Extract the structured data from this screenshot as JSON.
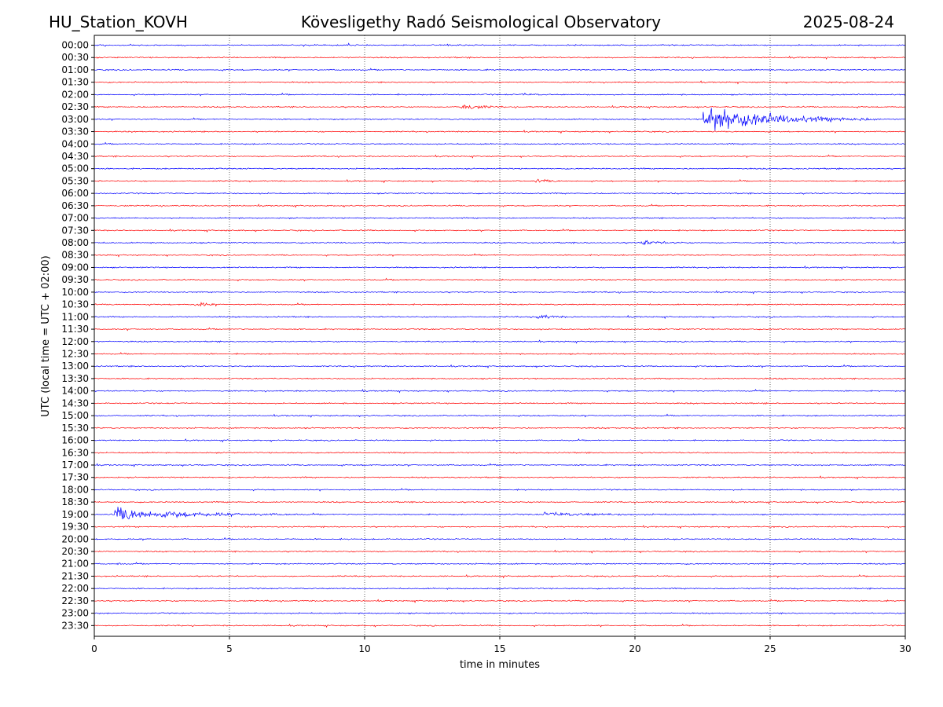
{
  "header": {
    "station": "HU_Station_KOVH",
    "observatory": "Kövesligethy Radó Seismological Observatory",
    "date": "2025-08-24"
  },
  "chart_data": {
    "type": "line",
    "title": "Kövesligethy Radó Seismological Observatory",
    "xlabel": "time in minutes",
    "ylabel": "UTC (local time = UTC + 02:00)",
    "xlim": [
      0,
      30
    ],
    "x_ticks": [
      0,
      5,
      10,
      15,
      20,
      25,
      30
    ],
    "grid": "vertical dotted at 5-minute intervals",
    "colors": {
      "even_row": "#0000ff",
      "odd_row": "#ff0000",
      "grid": "#000000"
    },
    "rows": [
      "00:00",
      "00:30",
      "01:00",
      "01:30",
      "02:00",
      "02:30",
      "03:00",
      "03:30",
      "04:00",
      "04:30",
      "05:00",
      "05:30",
      "06:00",
      "06:30",
      "07:00",
      "07:30",
      "08:00",
      "08:30",
      "09:00",
      "09:30",
      "10:00",
      "10:30",
      "11:00",
      "11:30",
      "12:00",
      "12:30",
      "13:00",
      "13:30",
      "14:00",
      "14:30",
      "15:00",
      "15:30",
      "16:00",
      "16:30",
      "17:00",
      "17:30",
      "18:00",
      "18:30",
      "19:00",
      "19:30",
      "20:00",
      "20:30",
      "21:00",
      "21:30",
      "22:00",
      "22:30",
      "23:00",
      "23:30"
    ],
    "events": [
      {
        "row": "02:00",
        "start_min": 15.8,
        "duration_min": 1.0,
        "amplitude": 1.2
      },
      {
        "row": "02:30",
        "start_min": 13.5,
        "duration_min": 1.6,
        "amplitude": 5.5
      },
      {
        "row": "03:00",
        "start_min": 22.5,
        "duration_min": 6.5,
        "amplitude": 18
      },
      {
        "row": "05:30",
        "start_min": 16.3,
        "duration_min": 1.4,
        "amplitude": 2.2
      },
      {
        "row": "08:00",
        "start_min": 20.2,
        "duration_min": 1.7,
        "amplitude": 3.2
      },
      {
        "row": "10:30",
        "start_min": 3.7,
        "duration_min": 1.0,
        "amplitude": 4.5
      },
      {
        "row": "11:00",
        "start_min": 16.3,
        "duration_min": 1.4,
        "amplitude": 3.5
      },
      {
        "row": "19:00",
        "start_min": 0.7,
        "duration_min": 6.8,
        "amplitude": 8.5
      },
      {
        "row": "19:00",
        "start_min": 16.6,
        "duration_min": 5.2,
        "amplitude": 2.2
      },
      {
        "row": "21:00",
        "start_min": 0.75,
        "duration_min": 0.5,
        "amplitude": 2.0
      }
    ]
  }
}
